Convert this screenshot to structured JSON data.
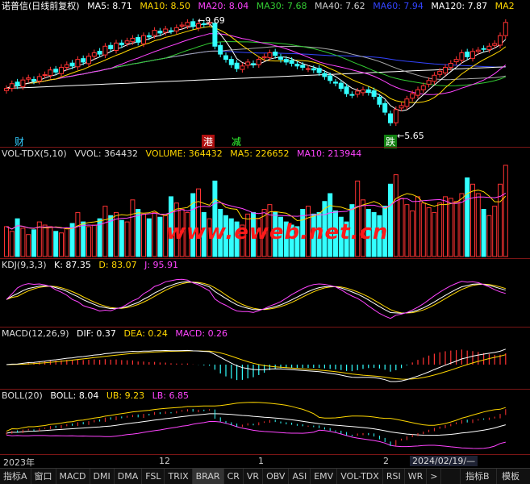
{
  "price_panel": {
    "title": "诺普信(日线前复权)",
    "indicators": [
      {
        "label": "MA5: 8.71",
        "color": "#ffffff"
      },
      {
        "label": "MA10: 8.50",
        "color": "#ffd700"
      },
      {
        "label": "MA20: 8.04",
        "color": "#ff44ff"
      },
      {
        "label": "MA30: 7.68",
        "color": "#33cc33"
      },
      {
        "label": "MA40: 7.62",
        "color": "#cccccc"
      },
      {
        "label": "MA60: 7.94",
        "color": "#3344ff"
      },
      {
        "label": "MA120: 7.87",
        "color": "#ffffff"
      },
      {
        "label": "MA2",
        "color": "#ffd700"
      }
    ],
    "high_label": "9.69",
    "low_label": "5.65",
    "events": [
      {
        "text": "财",
        "color": "#33ccff",
        "bg": "#000"
      },
      {
        "text": "港",
        "color": "#ffffff",
        "bg": "#b01010"
      },
      {
        "text": "减",
        "color": "#33ff33",
        "bg": "#000"
      },
      {
        "text": "跌",
        "color": "#ffffff",
        "bg": "#108010"
      }
    ]
  },
  "vol_panel": {
    "indicators": [
      {
        "label": "VOL-TDX(5,10)",
        "color": "#dddddd"
      },
      {
        "label": "VVOL: 364432",
        "color": "#dddddd"
      },
      {
        "label": "VOLUME: 364432",
        "color": "#ffd700"
      },
      {
        "label": "MA5: 226652",
        "color": "#ffd700"
      },
      {
        "label": "MA10: 213944",
        "color": "#ff44ff"
      }
    ],
    "watermark": "www.eweb.net.cn"
  },
  "kdj_panel": {
    "indicators": [
      {
        "label": "KDJ(9,3,3)",
        "color": "#dddddd"
      },
      {
        "label": "K: 87.35",
        "color": "#ffffff"
      },
      {
        "label": "D: 83.07",
        "color": "#ffd700"
      },
      {
        "label": "J: 95.91",
        "color": "#ff44ff"
      }
    ]
  },
  "macd_panel": {
    "indicators": [
      {
        "label": "MACD(12,26,9)",
        "color": "#dddddd"
      },
      {
        "label": "DIF: 0.37",
        "color": "#ffffff"
      },
      {
        "label": "DEA: 0.24",
        "color": "#ffd700"
      },
      {
        "label": "MACD: 0.26",
        "color": "#ff44ff"
      }
    ]
  },
  "boll_panel": {
    "indicators": [
      {
        "label": "BOLL(20)",
        "color": "#dddddd"
      },
      {
        "label": "BOLL: 8.04",
        "color": "#ffffff"
      },
      {
        "label": "UB: 9.23",
        "color": "#ffd700"
      },
      {
        "label": "LB: 6.85",
        "color": "#ff44ff"
      }
    ]
  },
  "x_axis": {
    "labels": [
      "2023年",
      "12",
      "1",
      "2"
    ],
    "cursor_date": "2024/02/19/—"
  },
  "tabs": [
    "指标A",
    "窗口",
    "MACD",
    "DMI",
    "DMA",
    "FSL",
    "TRIX",
    "BRAR",
    "CR",
    "VR",
    "OBV",
    "ASI",
    "EMV",
    "VOL-TDX",
    "RSI",
    "WR",
    ">"
  ],
  "selected_tab": "BRAR",
  "right_buttons": [
    "指标B",
    "模板"
  ],
  "colors": {
    "up": "#ff3333",
    "down": "#33ffff",
    "grid": "#7a1515"
  },
  "chart_data": {
    "type": "candlestick",
    "close": [
      7.1,
      7.28,
      7.2,
      7.42,
      7.5,
      7.38,
      7.55,
      7.62,
      7.8,
      7.72,
      7.9,
      8.0,
      7.95,
      8.2,
      8.1,
      8.32,
      8.45,
      8.4,
      8.7,
      8.6,
      8.82,
      8.75,
      8.9,
      9.0,
      8.85,
      9.1,
      9.05,
      9.3,
      9.2,
      9.35,
      9.28,
      9.4,
      9.5,
      9.6,
      9.45,
      9.55,
      9.52,
      9.6,
      8.7,
      8.4,
      8.2,
      8.0,
      7.85,
      7.95,
      8.1,
      8.0,
      8.2,
      8.3,
      8.45,
      8.35,
      8.2,
      8.1,
      8.05,
      7.95,
      7.9,
      7.85,
      7.8,
      7.7,
      7.55,
      7.4,
      7.3,
      7.1,
      6.9,
      6.85,
      7.0,
      7.05,
      6.95,
      6.8,
      6.5,
      6.2,
      5.8,
      6.3,
      6.45,
      6.7,
      6.9,
      7.05,
      7.2,
      7.4,
      7.6,
      7.75,
      7.9,
      8.05,
      8.2,
      8.45,
      8.3,
      8.5,
      8.55,
      8.6,
      8.7,
      8.8,
      9.1,
      9.6
    ],
    "volume": [
      95,
      80,
      120,
      90,
      70,
      85,
      110,
      100,
      95,
      80,
      75,
      90,
      105,
      140,
      110,
      95,
      100,
      120,
      160,
      130,
      140,
      115,
      110,
      180,
      150,
      135,
      120,
      140,
      125,
      130,
      190,
      170,
      150,
      140,
      200,
      215,
      140,
      120,
      240,
      150,
      130,
      120,
      110,
      100,
      135,
      140,
      120,
      150,
      165,
      140,
      125,
      110,
      100,
      95,
      150,
      160,
      135,
      140,
      175,
      200,
      145,
      125,
      110,
      165,
      240,
      180,
      150,
      140,
      130,
      160,
      230,
      260,
      185,
      165,
      145,
      190,
      170,
      155,
      140,
      170,
      190,
      185,
      175,
      200,
      250,
      230,
      200,
      150,
      130,
      160,
      230,
      290
    ]
  }
}
